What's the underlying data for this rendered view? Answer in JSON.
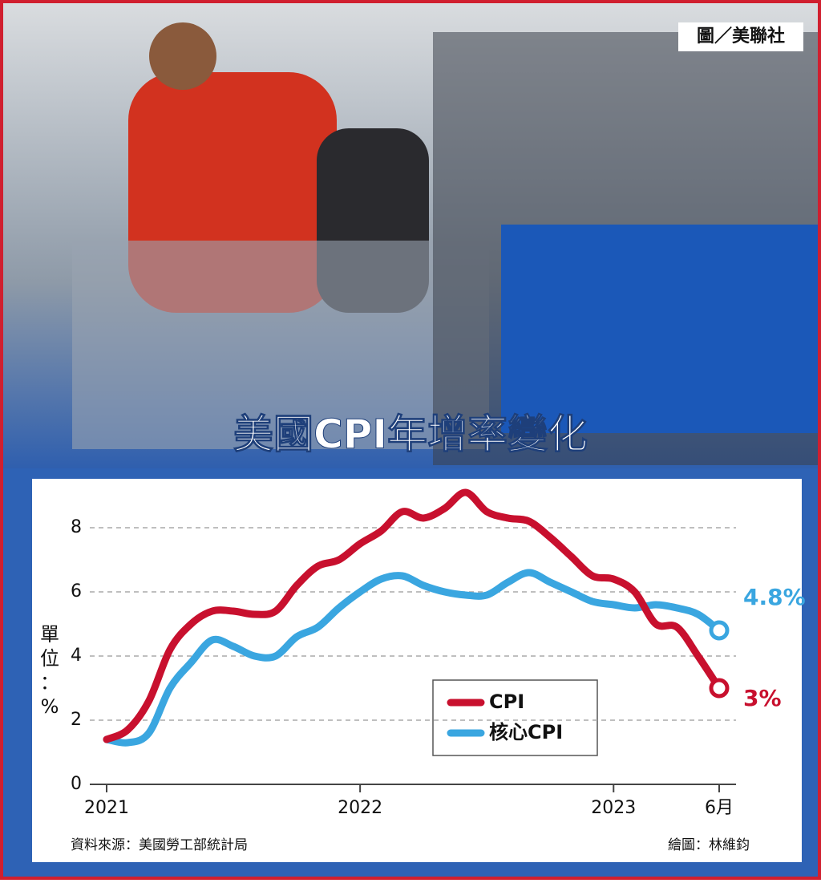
{
  "photo_credit": "圖／美聯社",
  "chart_data": {
    "type": "line",
    "title": "美國CPI年增率變化",
    "y_label": "單位：%",
    "source": "資料來源：美國勞工部統計局",
    "credit": "繪圖：林維鈞",
    "categories": [
      "2021",
      null,
      null,
      null,
      null,
      null,
      null,
      null,
      null,
      null,
      null,
      null,
      "2022",
      null,
      null,
      null,
      null,
      null,
      null,
      null,
      null,
      null,
      null,
      null,
      "2023",
      null,
      null,
      null,
      null,
      "6月"
    ],
    "series": [
      {
        "name": "CPI",
        "color": "#c8102e",
        "values": [
          1.4,
          1.7,
          2.6,
          4.2,
          5.0,
          5.4,
          5.4,
          5.3,
          5.4,
          6.2,
          6.8,
          7.0,
          7.5,
          7.9,
          8.5,
          8.3,
          8.6,
          9.1,
          8.5,
          8.3,
          8.2,
          7.7,
          7.1,
          6.5,
          6.4,
          6.0,
          5.0,
          4.9,
          4.0,
          3.0
        ],
        "value_labels": [
          null,
          null,
          null,
          null,
          null,
          null,
          null,
          null,
          null,
          null,
          null,
          null,
          null,
          null,
          null,
          null,
          null,
          null,
          null,
          null,
          null,
          null,
          null,
          null,
          null,
          null,
          null,
          null,
          null,
          "3%"
        ]
      },
      {
        "name": "核心CPI",
        "color": "#3aa6e0",
        "values": [
          1.4,
          1.3,
          1.6,
          3.0,
          3.8,
          4.5,
          4.3,
          4.0,
          4.0,
          4.6,
          4.9,
          5.5,
          6.0,
          6.4,
          6.5,
          6.2,
          6.0,
          5.9,
          5.9,
          6.3,
          6.6,
          6.3,
          6.0,
          5.7,
          5.6,
          5.5,
          5.6,
          5.5,
          5.3,
          4.8
        ],
        "value_labels": [
          null,
          null,
          null,
          null,
          null,
          null,
          null,
          null,
          null,
          null,
          null,
          null,
          null,
          null,
          null,
          null,
          null,
          null,
          null,
          null,
          null,
          null,
          null,
          null,
          null,
          null,
          null,
          null,
          null,
          "4.8%"
        ]
      }
    ],
    "ylim": [
      0,
      9
    ],
    "yticks": [
      0,
      2,
      4,
      6,
      8
    ],
    "grid": true
  }
}
